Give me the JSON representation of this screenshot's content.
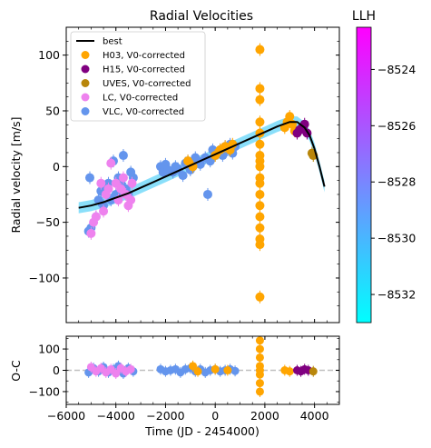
{
  "chart_data": [
    {
      "type": "scatter",
      "panel": "main",
      "title": "Radial Velocities",
      "xlabel": "",
      "ylabel": "Radial velocity [m/s]",
      "xlim": [
        -6000,
        5000
      ],
      "ylim": [
        -140,
        125
      ],
      "yticks": [
        100,
        50,
        0,
        -50,
        -100
      ],
      "ytick_labels": [
        "100",
        "50",
        "0",
        "−50",
        "−100"
      ],
      "legend_position": "top-left",
      "legend": [
        {
          "label": "best",
          "kind": "line",
          "color": "#000000"
        },
        {
          "label": "H03, V0-corrected",
          "kind": "marker",
          "color": "#ffa500"
        },
        {
          "label": "H15, V0-corrected",
          "kind": "marker",
          "color": "#800080"
        },
        {
          "label": "UVES, V0-corrected",
          "kind": "marker",
          "color": "#b8860b"
        },
        {
          "label": "LC, V0-corrected",
          "kind": "marker",
          "color": "#ee82ee"
        },
        {
          "label": "VLC, V0-corrected",
          "kind": "marker",
          "color": "#6495ed"
        }
      ],
      "best_fit": {
        "x": [
          -5500,
          -5000,
          -4500,
          -4000,
          -3500,
          -3000,
          -2500,
          -2000,
          -1500,
          -1000,
          -500,
          0,
          500,
          1000,
          1500,
          2000,
          2500,
          3000,
          3300,
          3600,
          3800,
          4000,
          4200,
          4400
        ],
        "y": [
          -37,
          -35,
          -32,
          -28,
          -24,
          -19,
          -14,
          -9,
          -4,
          1,
          6,
          11,
          16,
          21,
          26,
          31,
          36,
          40,
          40,
          35,
          28,
          16,
          0,
          -18
        ]
      },
      "series": [
        {
          "name": "VLC, V0-corrected",
          "color": "#6495ed",
          "x": [
            -5100,
            -5050,
            -5000,
            -4800,
            -4700,
            -4600,
            -4500,
            -4400,
            -4300,
            -4200,
            -4100,
            -4000,
            -3900,
            -3800,
            -3700,
            -3600,
            -3500,
            -3400,
            -3300,
            -2200,
            -2100,
            -2000,
            -1900,
            -1700,
            -1600,
            -1500,
            -1300,
            -1200,
            -1100,
            -1000,
            -900,
            -800,
            -700,
            -600,
            -400,
            -300,
            -200,
            -100,
            0,
            100,
            200,
            300,
            400,
            500,
            600,
            700,
            800
          ],
          "y": [
            -58,
            -10,
            -55,
            -45,
            -30,
            -22,
            -35,
            -20,
            -15,
            -30,
            5,
            -25,
            -10,
            -15,
            10,
            -20,
            -25,
            -5,
            -10,
            0,
            -5,
            2,
            -3,
            -5,
            0,
            -2,
            -8,
            3,
            5,
            -3,
            0,
            8,
            5,
            2,
            8,
            -25,
            5,
            15,
            10,
            12,
            15,
            10,
            18,
            15,
            20,
            12,
            18
          ]
        },
        {
          "name": "LC, V0-corrected",
          "color": "#ee82ee",
          "x": [
            -5000,
            -4900,
            -4800,
            -4600,
            -4500,
            -4400,
            -4300,
            -4200,
            -4000,
            -3900,
            -3800,
            -3700,
            -3600,
            -3500,
            -3400,
            -3350
          ],
          "y": [
            -60,
            -50,
            -45,
            -15,
            -40,
            -25,
            -20,
            3,
            -15,
            -30,
            -20,
            -10,
            -25,
            -35,
            -30,
            -15
          ]
        },
        {
          "name": "H03, V0-corrected",
          "color": "#ffa500",
          "x": [
            -1100,
            -900,
            0,
            200,
            400,
            600,
            700,
            1800,
            1800,
            1800,
            1800,
            1800,
            1800,
            1800,
            1800,
            1800,
            1800,
            1800,
            1800,
            1800,
            1800,
            1800,
            1800,
            1800,
            1800,
            2800,
            2900,
            3000,
            3100,
            3200
          ],
          "y": [
            5,
            0,
            10,
            15,
            18,
            15,
            20,
            105,
            70,
            60,
            40,
            30,
            20,
            10,
            0,
            -10,
            -15,
            -25,
            -35,
            -45,
            -55,
            -65,
            -70,
            -117,
            5,
            35,
            40,
            45,
            38,
            32
          ]
        },
        {
          "name": "H15, V0-corrected",
          "color": "#800080",
          "x": [
            3300,
            3400,
            3500,
            3600,
            3700
          ],
          "y": [
            30,
            33,
            35,
            38,
            30
          ]
        },
        {
          "name": "UVES, V0-corrected",
          "color": "#b8860b",
          "x": [
            3900,
            3950
          ],
          "y": [
            12,
            10
          ]
        }
      ]
    },
    {
      "type": "scatter",
      "panel": "residuals",
      "xlabel": "Time (JD - 2454000)",
      "ylabel": "O-C",
      "xlim": [
        -6000,
        5000
      ],
      "ylim": [
        -160,
        160
      ],
      "xticks": [
        -6000,
        -4000,
        -2000,
        0,
        2000,
        4000
      ],
      "xtick_labels": [
        "−6000",
        "−4000",
        "−2000",
        "0",
        "2000",
        "4000"
      ],
      "yticks": [
        100,
        0,
        -100
      ],
      "ytick_labels": [
        "100",
        "0",
        "−100"
      ],
      "zero_line": {
        "y": 0,
        "style": "dashed",
        "color": "#c0c0c0"
      },
      "series": [
        {
          "name": "VLC",
          "color": "#6495ed",
          "x": [
            -5100,
            -4900,
            -4700,
            -4500,
            -4300,
            -4100,
            -3900,
            -3700,
            -3500,
            -3300,
            -2200,
            -2000,
            -1800,
            -1600,
            -1400,
            -1200,
            -1000,
            -800,
            -600,
            -400,
            -200,
            0,
            200,
            400,
            600,
            800
          ],
          "y": [
            -10,
            10,
            -5,
            15,
            -10,
            5,
            20,
            -15,
            10,
            -5,
            5,
            -5,
            0,
            5,
            -10,
            5,
            10,
            -5,
            5,
            -10,
            0,
            5,
            -5,
            0,
            5,
            -3
          ]
        },
        {
          "name": "LC",
          "color": "#ee82ee",
          "x": [
            -5000,
            -4800,
            -4600,
            -4400,
            -4200,
            -4000,
            -3800,
            -3600,
            -3400
          ],
          "y": [
            15,
            -5,
            10,
            -10,
            5,
            -15,
            10,
            -5,
            5
          ]
        },
        {
          "name": "H03",
          "color": "#ffa500",
          "x": [
            -900,
            -700,
            0,
            500,
            1800,
            1800,
            1800,
            1800,
            1800,
            1800,
            1800,
            1800,
            2800,
            3000
          ],
          "y": [
            20,
            -5,
            5,
            0,
            140,
            100,
            60,
            20,
            -20,
            -60,
            -100,
            0,
            0,
            -5
          ]
        },
        {
          "name": "H15",
          "color": "#800080",
          "x": [
            3300,
            3450,
            3600,
            3750
          ],
          "y": [
            0,
            -5,
            5,
            0
          ]
        },
        {
          "name": "UVES",
          "color": "#b8860b",
          "x": [
            3950
          ],
          "y": [
            -5
          ]
        }
      ]
    },
    {
      "type": "heatmap",
      "panel": "colorbar",
      "title": "LLH",
      "range": [
        -8533,
        -8522.5
      ],
      "ticks": [
        -8524,
        -8526,
        -8528,
        -8530,
        -8532
      ],
      "tick_labels": [
        "−8524",
        "−8526",
        "−8528",
        "−8530",
        "−8532"
      ],
      "colors": [
        "#00ffff",
        "#ff00ff"
      ]
    }
  ]
}
